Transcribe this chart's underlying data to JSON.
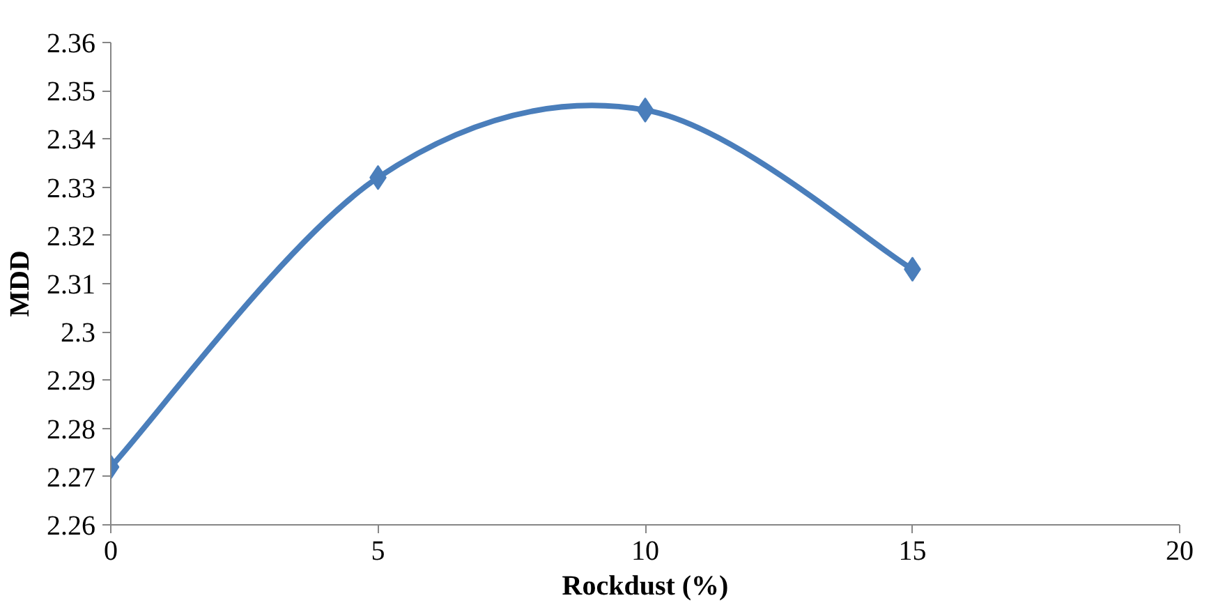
{
  "chart_data": {
    "type": "line",
    "xlabel": "Rockdust (%)",
    "ylabel": "MDD",
    "x": [
      0,
      5,
      10,
      15
    ],
    "series": [
      {
        "color": "#4a7ebb",
        "values": [
          2.272,
          2.332,
          2.346,
          2.313
        ]
      }
    ],
    "xlim": [
      0,
      20
    ],
    "xticks": [
      0,
      5,
      10,
      15,
      20
    ],
    "ylim": [
      2.26,
      2.36
    ],
    "yticks": [
      2.26,
      2.27,
      2.28,
      2.29,
      2.3,
      2.31,
      2.32,
      2.33,
      2.34,
      2.35,
      2.36
    ],
    "grid": false,
    "marker": "diamond",
    "line_style": "solid"
  }
}
